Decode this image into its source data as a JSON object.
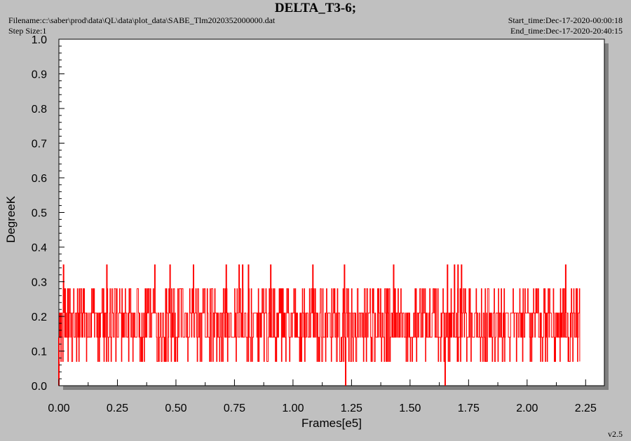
{
  "header": {
    "title": "DELTA_T3-6;",
    "filename": "Filename:c:\\saber\\prod\\data\\QL\\data\\plot_data\\SABE_Tlm2020352000000.dat",
    "step_size": "Step Size:1",
    "start_time": "Start_time:Dec-17-2020-00:00:18",
    "end_time": "End_time:Dec-17-2020-20:40:15"
  },
  "footer": {
    "version": "v2.5"
  },
  "colors": {
    "background": "#c0c0c0",
    "plot_area": "#ffffff",
    "series": "#ff0000",
    "shadow": "#808080"
  },
  "chart_data": {
    "type": "line",
    "title": "",
    "xlabel": "Frames[e5]",
    "ylabel": "DegreeK",
    "xlim": [
      0,
      2.33
    ],
    "ylim": [
      0,
      1.0
    ],
    "x_ticks": [
      "0.00",
      "0.25",
      "0.50",
      "0.75",
      "1.00",
      "1.25",
      "1.50",
      "1.75",
      "2.00",
      "2.25"
    ],
    "y_ticks": [
      "0.0",
      "0.1",
      "0.2",
      "0.3",
      "0.4",
      "0.5",
      "0.6",
      "0.7",
      "0.8",
      "0.9",
      "1.0"
    ],
    "grid": false,
    "series": [
      {
        "levels": [
          0.07,
          0.14,
          0.21,
          0.28
        ],
        "x_range": [
          0.0,
          2.225
        ],
        "band_min": 0.07,
        "band_max": 0.28,
        "typical_range": [
          0.14,
          0.21
        ],
        "spikes": [
          {
            "x": 0.02,
            "y": 0.35
          },
          {
            "x": 0.205,
            "y": 0.35
          },
          {
            "x": 0.41,
            "y": 0.35
          },
          {
            "x": 0.475,
            "y": 0.35
          },
          {
            "x": 0.575,
            "y": 0.35
          },
          {
            "x": 0.715,
            "y": 0.35
          },
          {
            "x": 0.77,
            "y": 0.35
          },
          {
            "x": 0.785,
            "y": 0.35
          },
          {
            "x": 0.81,
            "y": 0.35
          },
          {
            "x": 0.905,
            "y": 0.35
          },
          {
            "x": 1.085,
            "y": 0.35
          },
          {
            "x": 1.22,
            "y": 0.35
          },
          {
            "x": 1.43,
            "y": 0.35
          },
          {
            "x": 1.66,
            "y": 0.35
          },
          {
            "x": 1.69,
            "y": 0.35
          },
          {
            "x": 1.705,
            "y": 0.35
          },
          {
            "x": 1.72,
            "y": 0.35
          },
          {
            "x": 2.165,
            "y": 0.35
          }
        ],
        "drops": [
          {
            "x": 0.0,
            "y": 0.0
          },
          {
            "x": 1.225,
            "y": 0.0
          },
          {
            "x": 1.65,
            "y": 0.0
          }
        ]
      }
    ]
  }
}
